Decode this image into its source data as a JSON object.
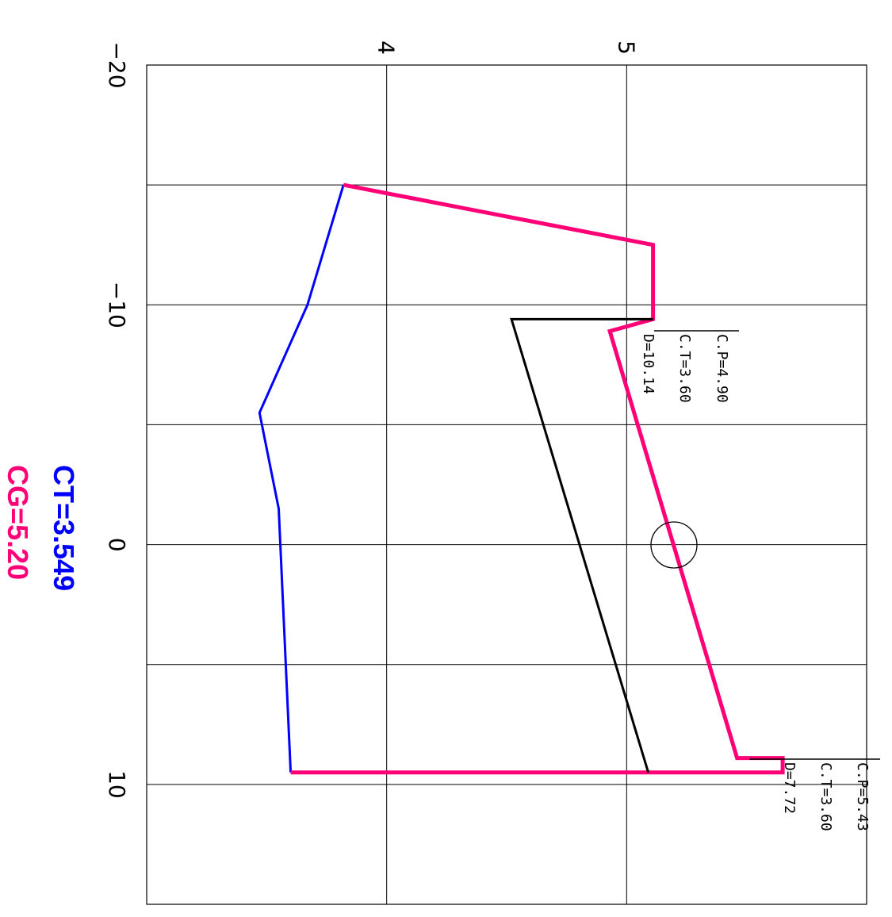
{
  "chart_data": {
    "type": "line",
    "orientation": "rotated-90-cw",
    "x_axis_ticks": [
      "−20",
      "−10",
      "0",
      "10"
    ],
    "y_axis_ticks": [
      "4",
      "5"
    ],
    "x_range": [
      -20,
      15
    ],
    "y_range": [
      3,
      6
    ],
    "grid": true,
    "series": [
      {
        "color": "#0000ff",
        "points": [
          [
            -15,
            3.82
          ],
          [
            -10,
            3.67
          ],
          [
            -5.5,
            3.47
          ],
          [
            -1.5,
            3.55
          ],
          [
            9.5,
            3.6
          ]
        ]
      },
      {
        "color": "#ff0077",
        "points": [
          [
            -15,
            3.82
          ],
          [
            -12.5,
            5.11
          ],
          [
            -9.4,
            5.11
          ],
          [
            -8.9,
            4.93
          ],
          [
            8.9,
            5.46
          ],
          [
            8.9,
            5.65
          ],
          [
            9.5,
            5.65
          ],
          [
            9.5,
            3.6
          ]
        ]
      },
      {
        "color": "#000000",
        "points": [
          [
            -9.4,
            5.11
          ],
          [
            -9.4,
            4.52
          ],
          [
            9.5,
            5.09
          ]
        ]
      }
    ],
    "annotations": [
      {
        "lines": [
          "C.P=4.90",
          "C.T=3.60",
          "D=10.14"
        ],
        "at_x": -9.0
      },
      {
        "lines": [
          "C.P=5.43",
          "C.T=3.60",
          "D=7.72"
        ],
        "at_x": 9.0
      }
    ]
  },
  "summary": {
    "ct": "CT=3.549",
    "cg": "CG=5.20",
    "ct_color": "#0000ff",
    "cg_color": "#ff0077"
  }
}
